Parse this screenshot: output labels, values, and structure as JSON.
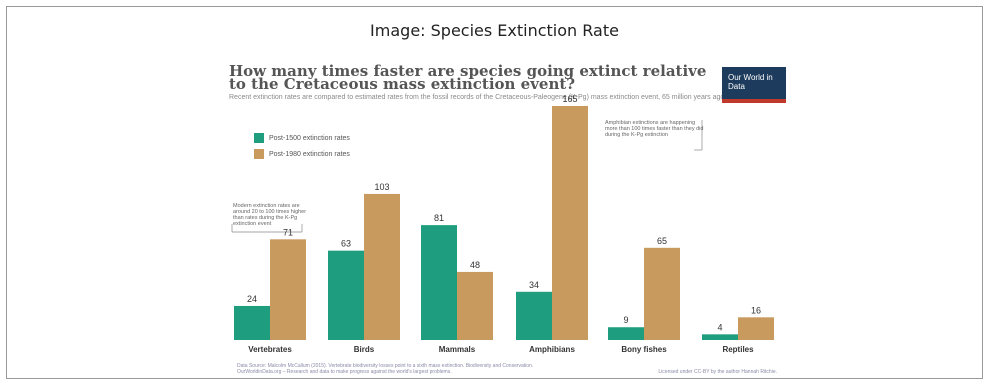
{
  "caption": "Image: Species Extinction Rate",
  "logo": "Our World in Data",
  "colors": {
    "post1500": "#1e9e7e",
    "post1980": "#c99a5e"
  },
  "chart_data": {
    "type": "bar",
    "title": "How many times faster are species going extinct relative to the Cretaceous mass extinction event?",
    "subtitle": "Recent extinction rates are compared to estimated rates from the fossil records of the Cretaceous-Paleogene (K-Pg) mass extinction event, 65 million years ago.",
    "categories": [
      "Vertebrates",
      "Birds",
      "Mammals",
      "Amphibians",
      "Bony fishes",
      "Reptiles"
    ],
    "series": [
      {
        "name": "Post-1500 extinction rates",
        "values": [
          24,
          63,
          81,
          34,
          9,
          4
        ]
      },
      {
        "name": "Post-1980 extinction rates",
        "values": [
          71,
          103,
          48,
          165,
          65,
          16
        ]
      }
    ],
    "ylim": [
      0,
      165
    ],
    "grid": false,
    "legend": "top-left",
    "annotations": [
      "Modern extinction rates are around 20 to 100 times higher than rates during the K-Pg extinction event",
      "Amphibian extinctions are happening more than 100 times faster than they did during the K-Pg extinction"
    ],
    "footer": {
      "source": "Data Source: Malcolm McCallum (2015). Vertebrate biodiversity losses point to a sixth mass extinction. Biodiversity and Conservation.",
      "site": "OurWorldinData.org – Research and data to make progress against the world's largest problems.",
      "license": "Licensed under CC-BY by the author Hannah Ritchie."
    }
  }
}
